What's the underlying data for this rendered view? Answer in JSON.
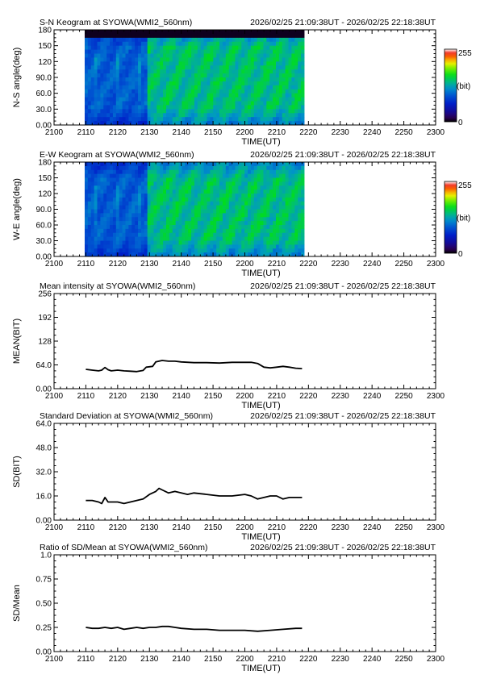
{
  "chart_data": [
    {
      "type": "heatmap",
      "title": "S-N Keogram at SYOWA(WMI2_560nm)",
      "subtitle": "2026/02/25 21:09:38UT - 2026/02/25 22:18:38UT",
      "xlabel": "TIME(UT)",
      "ylabel": "N-S angle(deg)",
      "x_ticks": [
        "2100",
        "2110",
        "2120",
        "2130",
        "2140",
        "2150",
        "2200",
        "2210",
        "2220",
        "2230",
        "2240",
        "2250",
        "2300"
      ],
      "y_ticks": [
        "0.00",
        "30.0",
        "60.0",
        "90.0",
        "120",
        "150",
        "180"
      ],
      "xlim": [
        "21:00",
        "23:00"
      ],
      "ylim": [
        0,
        180
      ],
      "data_range_ut": [
        "21:09:38",
        "22:18:38"
      ],
      "colorbar": {
        "min_label": "0",
        "max_label": "255",
        "unit": "(bit)"
      },
      "seed": 7,
      "bright_band_ut": [
        "21:29",
        "22:18"
      ]
    },
    {
      "type": "heatmap",
      "title": "E-W Keogram at SYOWA(WMI2_560nm)",
      "subtitle": "2026/02/25 21:09:38UT - 2026/02/25 22:18:38UT",
      "xlabel": "TIME(UT)",
      "ylabel": "W-E angle(deg)",
      "x_ticks": [
        "2100",
        "2110",
        "2120",
        "2130",
        "2140",
        "2150",
        "2200",
        "2210",
        "2220",
        "2230",
        "2240",
        "2250",
        "2300"
      ],
      "y_ticks": [
        "0.00",
        "30.0",
        "60.0",
        "90.0",
        "120",
        "150",
        "180"
      ],
      "xlim": [
        "21:00",
        "23:00"
      ],
      "ylim": [
        0,
        180
      ],
      "data_range_ut": [
        "21:09:38",
        "22:18:38"
      ],
      "colorbar": {
        "min_label": "0",
        "max_label": "255",
        "unit": "(bit)"
      },
      "seed": 19,
      "bright_band_ut": [
        "21:29",
        "22:18"
      ]
    },
    {
      "type": "line",
      "title": "Mean intensity at SYOWA(WMI2_560nm)",
      "subtitle": "2026/02/25 21:09:38UT - 2026/02/25 22:18:38UT",
      "xlabel": "TIME(UT)",
      "ylabel": "MEAN(BIT)",
      "x_ticks": [
        "2100",
        "2110",
        "2120",
        "2130",
        "2140",
        "2150",
        "2200",
        "2210",
        "2220",
        "2230",
        "2240",
        "2250",
        "2300"
      ],
      "y_ticks": [
        "0.00",
        "64.0",
        "128",
        "192",
        "256"
      ],
      "ylim": [
        0,
        256
      ],
      "x": [
        "21:10",
        "21:12",
        "21:14",
        "21:15",
        "21:16",
        "21:17",
        "21:18",
        "21:20",
        "21:22",
        "21:24",
        "21:26",
        "21:28",
        "21:29",
        "21:31",
        "21:32",
        "21:34",
        "21:36",
        "21:38",
        "21:40",
        "21:44",
        "21:48",
        "21:52",
        "21:56",
        "22:00",
        "22:02",
        "22:04",
        "22:06",
        "22:08",
        "22:10",
        "22:12",
        "22:14",
        "22:16",
        "22:18"
      ],
      "series": [
        {
          "values": [
            52,
            50,
            48,
            50,
            57,
            51,
            48,
            50,
            48,
            47,
            46,
            49,
            58,
            60,
            72,
            76,
            74,
            74,
            72,
            70,
            70,
            69,
            71,
            71,
            71,
            68,
            58,
            56,
            58,
            60,
            58,
            55,
            54
          ]
        }
      ]
    },
    {
      "type": "line",
      "title": "Standard Deviation at SYOWA(WMI2_560nm)",
      "subtitle": "2026/02/25 21:09:38UT - 2026/02/25 22:18:38UT",
      "xlabel": "TIME(UT)",
      "ylabel": "SD(BIT)",
      "x_ticks": [
        "2100",
        "2110",
        "2120",
        "2130",
        "2140",
        "2150",
        "2200",
        "2210",
        "2220",
        "2230",
        "2240",
        "2250",
        "2300"
      ],
      "y_ticks": [
        "0.00",
        "16.0",
        "32.0",
        "48.0",
        "64.0"
      ],
      "ylim": [
        0,
        64
      ],
      "x": [
        "21:10",
        "21:12",
        "21:14",
        "21:15",
        "21:16",
        "21:17",
        "21:18",
        "21:20",
        "21:22",
        "21:24",
        "21:26",
        "21:28",
        "21:30",
        "21:32",
        "21:33",
        "21:34",
        "21:36",
        "21:38",
        "21:40",
        "21:42",
        "21:44",
        "21:48",
        "21:52",
        "21:56",
        "22:00",
        "22:02",
        "22:04",
        "22:06",
        "22:08",
        "22:10",
        "22:12",
        "22:14",
        "22:16",
        "22:18"
      ],
      "series": [
        {
          "values": [
            13,
            13,
            12,
            11,
            15,
            12,
            12,
            12,
            11,
            12,
            13,
            14,
            17,
            19,
            21,
            20,
            18,
            19,
            18,
            17,
            18,
            17,
            16,
            16,
            17,
            16,
            14,
            15,
            16,
            16,
            14,
            15,
            15,
            15
          ]
        }
      ]
    },
    {
      "type": "line",
      "title": "Ratio of SD/Mean at SYOWA(WMI2_560nm)",
      "subtitle": "2026/02/25 21:09:38UT - 2026/02/25 22:18:38UT",
      "xlabel": "TIME(UT)",
      "ylabel": "SD/Mean",
      "x_ticks": [
        "2100",
        "2110",
        "2120",
        "2130",
        "2140",
        "2150",
        "2200",
        "2210",
        "2220",
        "2230",
        "2240",
        "2250",
        "2300"
      ],
      "y_ticks": [
        "0.00",
        "0.25",
        "0.50",
        "0.75",
        "1.0"
      ],
      "ylim": [
        0,
        1.0
      ],
      "x": [
        "21:10",
        "21:12",
        "21:14",
        "21:16",
        "21:18",
        "21:20",
        "21:22",
        "21:24",
        "21:26",
        "21:28",
        "21:30",
        "21:32",
        "21:34",
        "21:36",
        "21:38",
        "21:40",
        "21:44",
        "21:48",
        "21:52",
        "21:56",
        "22:00",
        "22:04",
        "22:08",
        "22:12",
        "22:16",
        "22:18"
      ],
      "series": [
        {
          "values": [
            0.25,
            0.24,
            0.24,
            0.25,
            0.24,
            0.25,
            0.23,
            0.24,
            0.25,
            0.24,
            0.25,
            0.25,
            0.26,
            0.26,
            0.25,
            0.24,
            0.23,
            0.23,
            0.22,
            0.22,
            0.22,
            0.21,
            0.22,
            0.23,
            0.24,
            0.24
          ]
        }
      ]
    }
  ]
}
